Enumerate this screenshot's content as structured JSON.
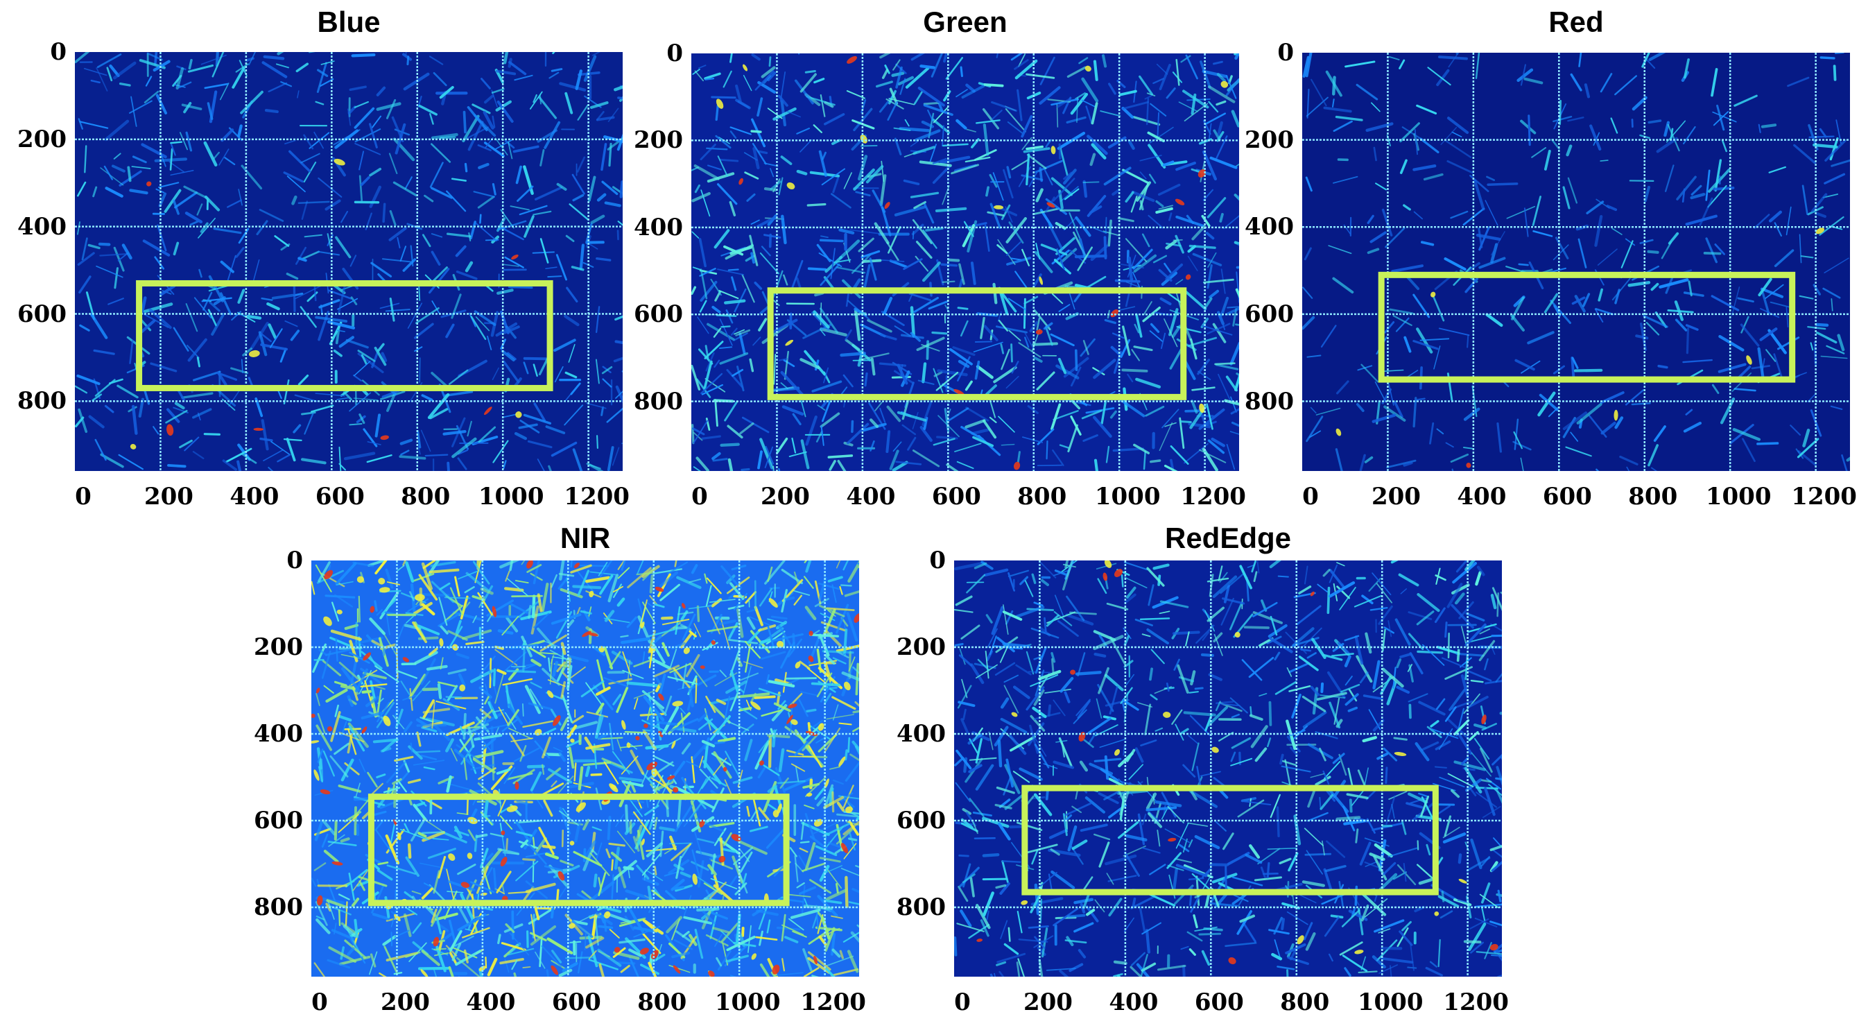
{
  "panels": [
    {
      "id": "blue",
      "title": "Blue",
      "texture": "low",
      "roi": [
        150,
        530,
        1110,
        770
      ]
    },
    {
      "id": "green",
      "title": "Green",
      "texture": "mid",
      "roi": [
        185,
        545,
        1150,
        790
      ]
    },
    {
      "id": "red",
      "title": "Red",
      "texture": "dark",
      "roi": [
        185,
        510,
        1145,
        750
      ]
    },
    {
      "id": "nir",
      "title": "NIR",
      "texture": "high",
      "roi": [
        140,
        545,
        1110,
        790
      ]
    },
    {
      "id": "rededge",
      "title": "RedEdge",
      "texture": "mid",
      "roi": [
        165,
        525,
        1125,
        765
      ]
    }
  ],
  "axes": {
    "x_ticks": [
      "0",
      "200",
      "400",
      "600",
      "800",
      "1000",
      "1200"
    ],
    "x_values": [
      0,
      200,
      400,
      600,
      800,
      1000,
      1200
    ],
    "y_ticks": [
      "0",
      "200",
      "400",
      "600",
      "800"
    ],
    "y_values": [
      0,
      200,
      400,
      600,
      800
    ],
    "x_range": [
      0,
      1280
    ],
    "y_range": [
      0,
      960
    ]
  },
  "colors": {
    "background_dark": "#07208f",
    "grid_line": "#8fe8ff",
    "roi_box": "#c8f25a",
    "leaf_low": "#1a8cff",
    "leaf_mid": "#35d6f0",
    "leaf_high": "#f0f040",
    "leaf_hot": "#e83a1a"
  }
}
